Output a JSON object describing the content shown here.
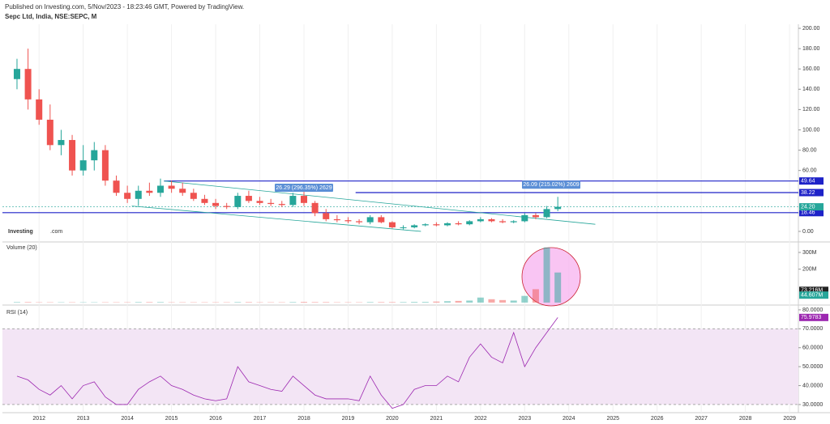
{
  "header": {
    "published": "Published on Investing.com, 5/Nov/2023 - 18:23:46 GMT, Powered by TradingView.",
    "symbol": "Sepc Ltd, India, NSE:SEPC, M"
  },
  "logo": {
    "brand": "Investing",
    "suffix": ".com"
  },
  "chart_data": {
    "type": "candlestick",
    "xlim": [
      2011.17,
      2029.2
    ],
    "xticks": [
      2012,
      2013,
      2014,
      2015,
      2016,
      2017,
      2018,
      2019,
      2020,
      2021,
      2022,
      2023,
      2024,
      2025,
      2026,
      2027,
      2028,
      2029
    ],
    "x": [
      2011.5,
      2011.75,
      2012.0,
      2012.25,
      2012.5,
      2012.75,
      2013.0,
      2013.25,
      2013.5,
      2013.75,
      2014.0,
      2014.25,
      2014.5,
      2014.75,
      2015.0,
      2015.25,
      2015.5,
      2015.75,
      2016.0,
      2016.25,
      2016.5,
      2016.75,
      2017.0,
      2017.25,
      2017.5,
      2017.75,
      2018.0,
      2018.25,
      2018.5,
      2018.75,
      2019.0,
      2019.25,
      2019.5,
      2019.75,
      2020.0,
      2020.25,
      2020.5,
      2020.75,
      2021.0,
      2021.25,
      2021.5,
      2021.75,
      2022.0,
      2022.25,
      2022.5,
      2022.75,
      2023.0,
      2023.25,
      2023.5,
      2023.75
    ],
    "open": [
      150,
      160,
      130,
      110,
      85,
      90,
      60,
      70,
      80,
      50,
      38,
      32,
      40,
      38,
      45,
      42,
      38,
      32,
      28,
      25,
      24,
      35,
      30,
      28,
      27,
      26,
      35,
      28,
      18,
      12,
      11,
      10,
      9,
      14,
      9,
      4,
      4,
      6,
      7,
      6,
      8,
      7,
      10,
      12,
      10,
      9,
      10,
      16,
      14,
      22
    ],
    "high": [
      170,
      180,
      140,
      125,
      100,
      95,
      85,
      88,
      85,
      55,
      45,
      45,
      48,
      52,
      50,
      48,
      42,
      36,
      32,
      28,
      38,
      40,
      34,
      32,
      30,
      38,
      40,
      30,
      22,
      16,
      14,
      12,
      16,
      16,
      10,
      6,
      7,
      8,
      9,
      9,
      10,
      11,
      14,
      13,
      12,
      11,
      18,
      18,
      25,
      34
    ],
    "low": [
      140,
      120,
      105,
      80,
      75,
      55,
      55,
      60,
      45,
      35,
      28,
      25,
      35,
      34,
      38,
      35,
      30,
      26,
      22,
      22,
      22,
      28,
      26,
      25,
      24,
      24,
      25,
      15,
      10,
      9,
      8,
      7,
      7,
      8,
      3,
      2,
      3,
      5,
      5,
      5,
      6,
      6,
      9,
      9,
      8,
      8,
      9,
      12,
      13,
      20
    ],
    "close": [
      160,
      130,
      110,
      85,
      90,
      60,
      70,
      80,
      50,
      38,
      32,
      40,
      38,
      45,
      42,
      38,
      32,
      28,
      25,
      24,
      35,
      30,
      28,
      27,
      26,
      35,
      28,
      18,
      12,
      11,
      10,
      9,
      14,
      9,
      4,
      4,
      6,
      7,
      6,
      8,
      7,
      10,
      12,
      10,
      9,
      10,
      16,
      14,
      22,
      24.2
    ],
    "up_color": "#26a69a",
    "down_color": "#ef5350",
    "ylim": [
      -9.6,
      204
    ],
    "yticks": [
      {
        "value": 0,
        "label": "0.00"
      },
      {
        "value": 60,
        "label": "60.00"
      },
      {
        "value": 80,
        "label": "80.00"
      },
      {
        "value": 100,
        "label": "100.00"
      },
      {
        "value": 120,
        "label": "120.00"
      },
      {
        "value": 140,
        "label": "140.00"
      },
      {
        "value": 160,
        "label": "160.00"
      },
      {
        "value": 180,
        "label": "180.00"
      },
      {
        "value": 200,
        "label": "200.00"
      }
    ],
    "levels": [
      {
        "value": 49.64,
        "label": "49.64",
        "x_start": 2014.83,
        "color": "#1e22c8"
      },
      {
        "value": 38.22,
        "label": "38.22",
        "x_start": 2019.17,
        "color": "#1e22c8"
      },
      {
        "value": 18.46,
        "label": "18.46",
        "x_start": 2011.17,
        "color": "#1e22c8"
      },
      {
        "value": 24.2,
        "label": "24.20",
        "x_start": 2011.17,
        "color": "#26a69a"
      }
    ],
    "trendlines": [
      {
        "x": [
          2014.83,
          2024.6
        ],
        "y": [
          49.64,
          7
        ]
      },
      {
        "x": [
          2014.1,
          2020.65
        ],
        "y": [
          25,
          0
        ]
      }
    ],
    "measures": [
      {
        "text": "26.29 (296.35%) 2629",
        "x": 2018.0,
        "y": 43
      },
      {
        "text": "26.09 (215.02%) 2609",
        "x": 2023.6,
        "y": 46
      }
    ],
    "volume": {
      "title": "Volume (20)",
      "values": [
        3,
        3,
        2,
        2,
        2,
        2,
        2,
        2,
        2,
        2,
        2,
        3,
        3,
        3,
        2,
        2,
        2,
        2,
        2,
        2,
        3,
        3,
        2,
        2,
        2,
        3,
        4,
        3,
        3,
        2,
        2,
        2,
        3,
        3,
        3,
        3,
        4,
        4,
        6,
        8,
        10,
        12,
        30,
        20,
        15,
        12,
        40,
        80,
        330,
        180
      ],
      "ylim": [
        -10,
        358
      ],
      "yticks": [
        {
          "value": 200,
          "label": "200M"
        },
        {
          "value": 300,
          "label": "300M"
        }
      ],
      "labels": [
        {
          "value": 73.216,
          "label": "73.216M",
          "color": "#222"
        },
        {
          "value": 44.607,
          "label": "44.607M",
          "color": "#26a69a"
        }
      ]
    },
    "rsi": {
      "title": "RSI (14)",
      "values": [
        45,
        43,
        38,
        35,
        40,
        33,
        40,
        42,
        34,
        30,
        30,
        38,
        42,
        45,
        40,
        38,
        35,
        33,
        32,
        33,
        50,
        42,
        40,
        38,
        37,
        45,
        40,
        35,
        33,
        33,
        33,
        32,
        45,
        35,
        28,
        30,
        38,
        40,
        40,
        45,
        42,
        55,
        62,
        55,
        52,
        68,
        50,
        60,
        68,
        75.9783
      ],
      "color": "#9c27b0",
      "ylim": [
        25.7,
        82.1
      ],
      "band": [
        30,
        70
      ],
      "yticks": [
        {
          "value": 30,
          "label": "30.0000"
        },
        {
          "value": 40,
          "label": "40.0000"
        },
        {
          "value": 50,
          "label": "50.0000"
        },
        {
          "value": 60,
          "label": "60.0000"
        },
        {
          "value": 70,
          "label": "70.0000"
        },
        {
          "value": 80,
          "label": "80.0000"
        }
      ],
      "label": {
        "value": 75.9783,
        "label": "75.9783"
      }
    }
  }
}
